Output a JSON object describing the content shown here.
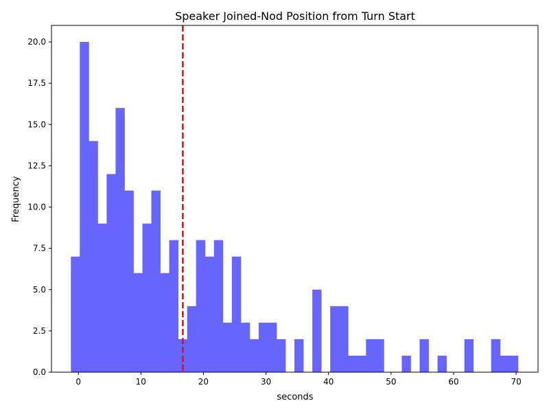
{
  "chart_data": {
    "type": "bar",
    "subtype": "histogram",
    "title": "Speaker Joined-Nod Position from Turn Start",
    "xlabel": "seconds",
    "ylabel": "Frequency",
    "xlim": [
      -4.3,
      73.5
    ],
    "ylim": [
      0,
      21
    ],
    "xticks": [
      0,
      10,
      20,
      30,
      40,
      50,
      60,
      70
    ],
    "yticks": [
      0.0,
      2.5,
      5.0,
      7.5,
      10.0,
      12.5,
      15.0,
      17.5,
      20.0
    ],
    "ytick_labels": [
      "0.0",
      "2.5",
      "5.0",
      "7.5",
      "10.0",
      "12.5",
      "15.0",
      "17.5",
      "20.0"
    ],
    "bin_start": -1.2,
    "bin_width": 1.43,
    "values": [
      7,
      20,
      14,
      9,
      12,
      16,
      11,
      6,
      9,
      11,
      6,
      8,
      2,
      4,
      8,
      7,
      8,
      3,
      7,
      3,
      2,
      3,
      3,
      2,
      0,
      2,
      0,
      5,
      0,
      4,
      4,
      1,
      1,
      2,
      2,
      0,
      0,
      1,
      0,
      2,
      0,
      1,
      0,
      0,
      2,
      0,
      0,
      2,
      1,
      1
    ],
    "bar_color": "#6666ff",
    "reference_line": {
      "x": 16.7,
      "color": "#ff0000",
      "style": "dashed"
    },
    "grid": false
  }
}
